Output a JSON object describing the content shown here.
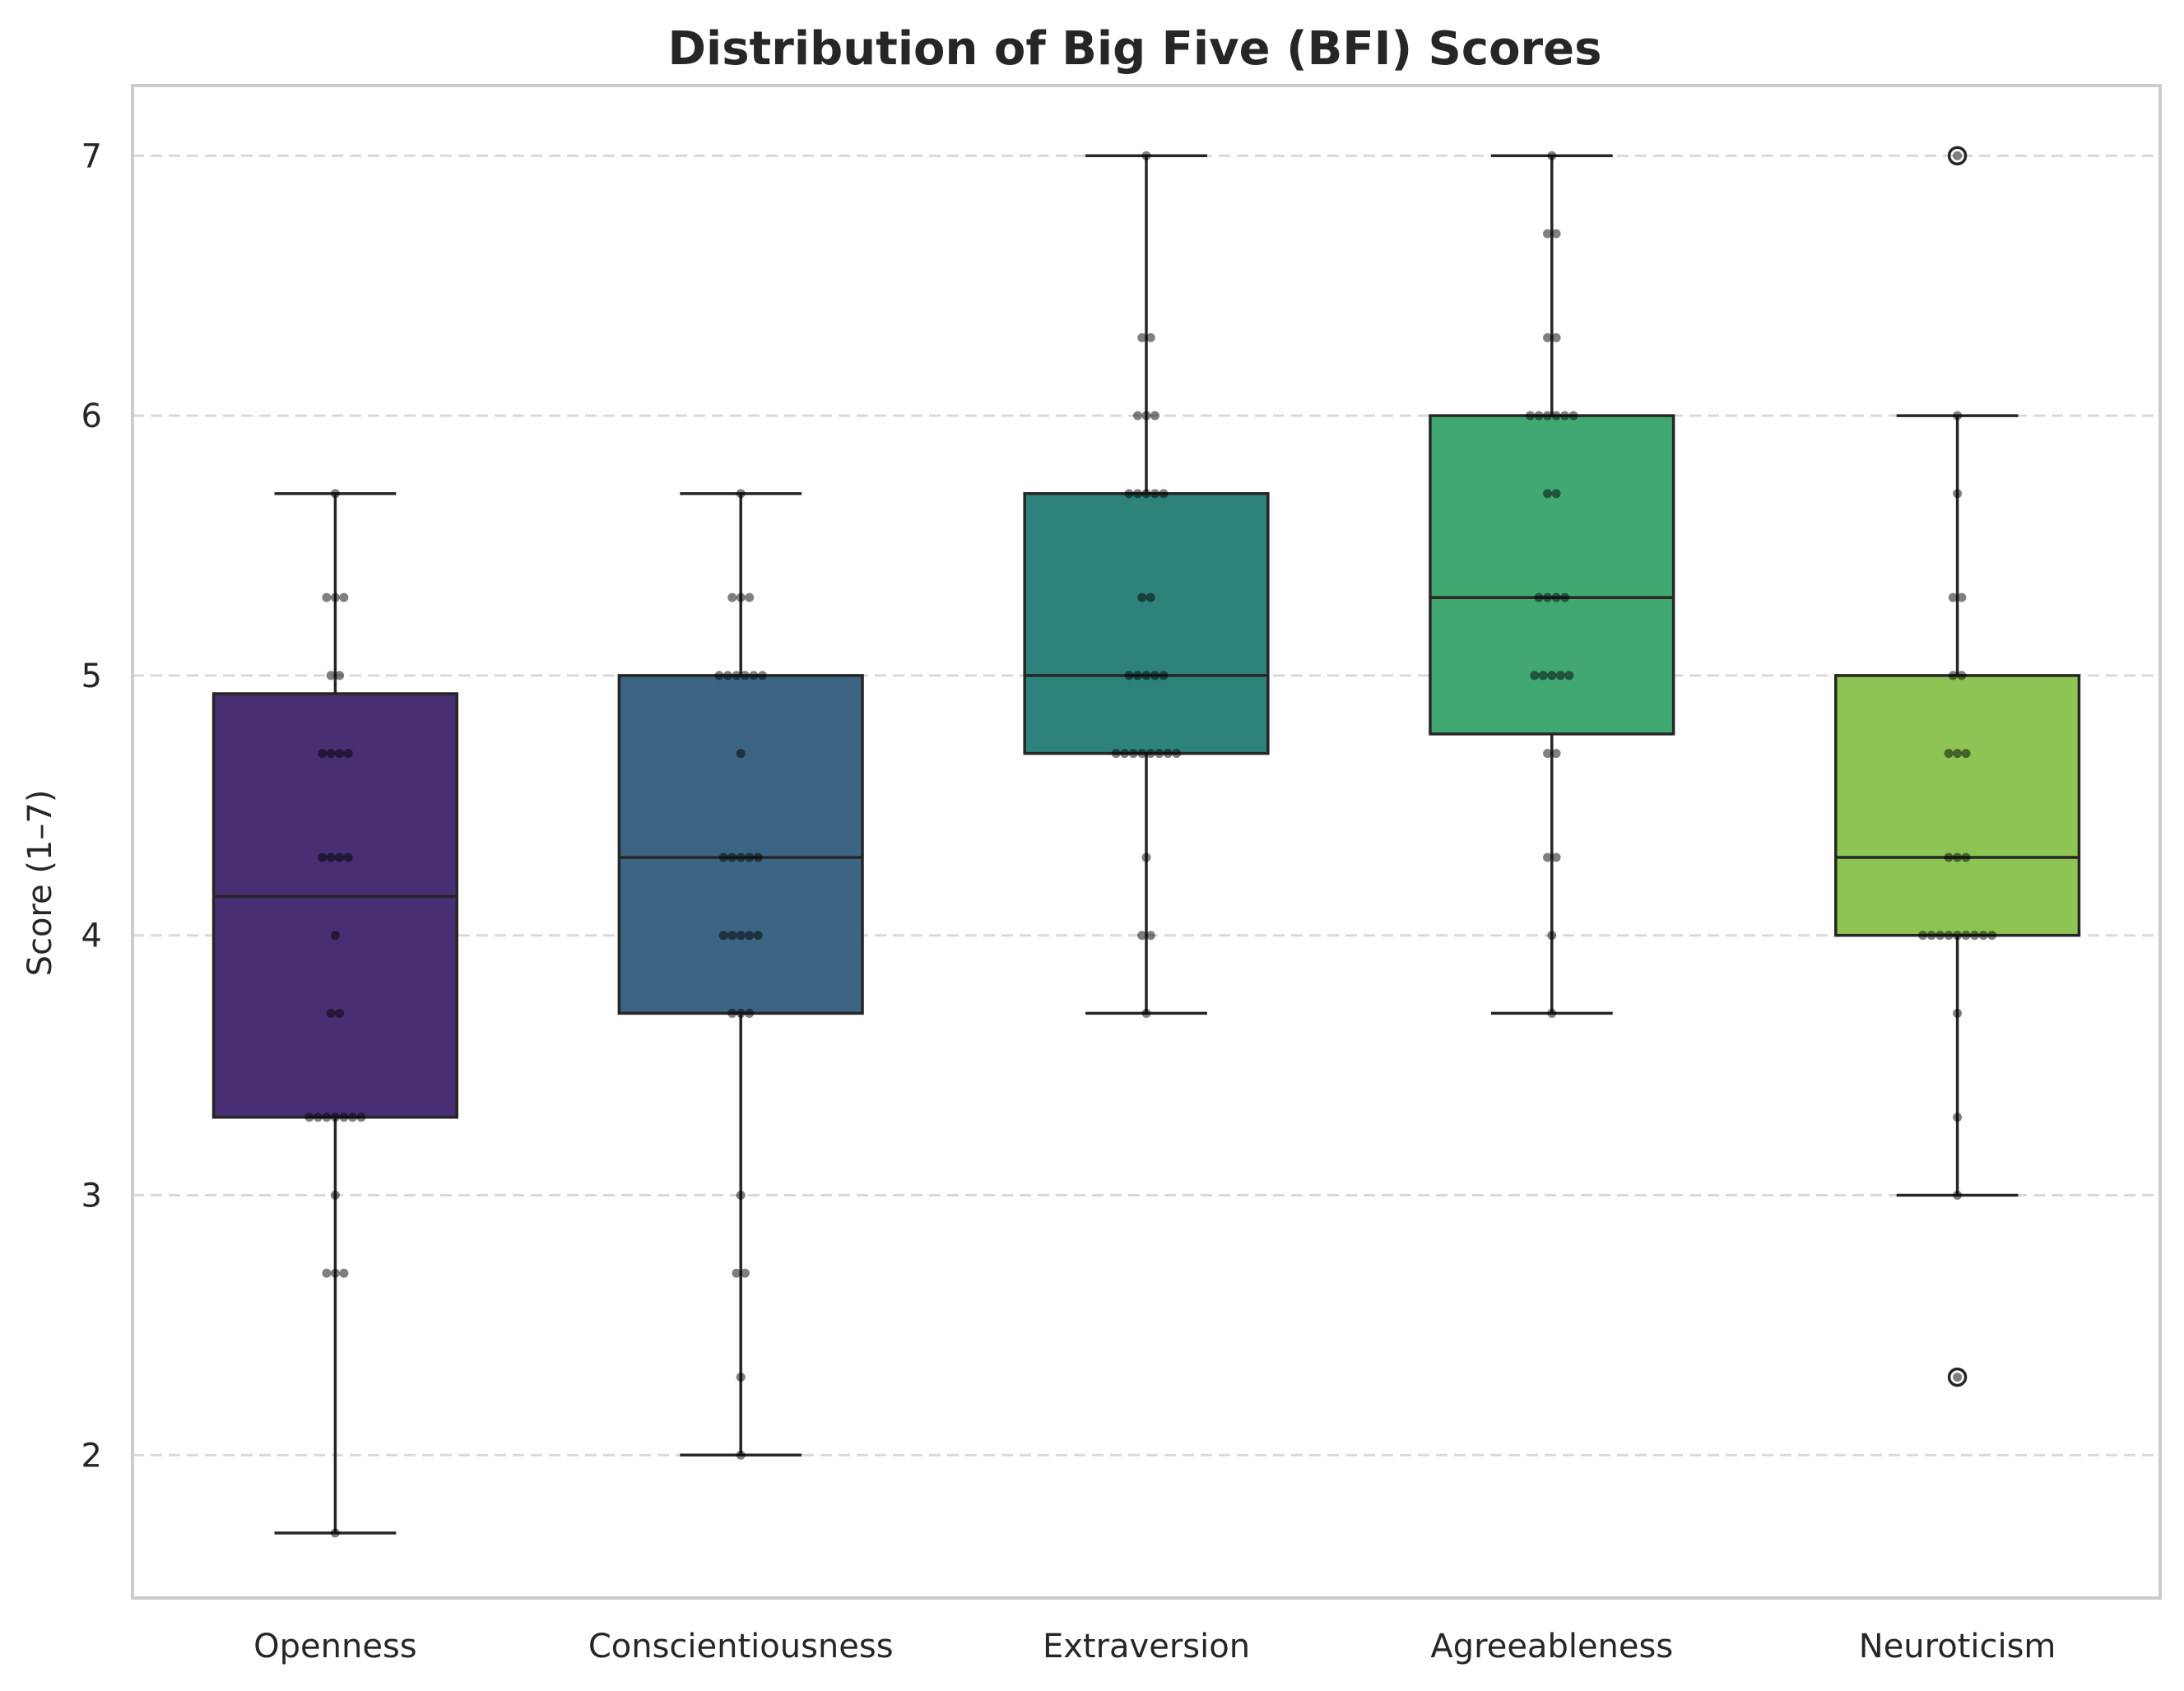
{
  "chart_data": {
    "type": "box",
    "title": "Distribution of Big Five (BFI) Scores",
    "xlabel": "",
    "ylabel": "Score (1–7)",
    "ylim": [
      1.45,
      7.27
    ],
    "yticks": [
      2,
      3,
      4,
      5,
      6,
      7
    ],
    "grid": "y-dashed",
    "categories": [
      "Openness",
      "Conscientiousness",
      "Extraversion",
      "Agreeableness",
      "Neuroticism"
    ],
    "colors": [
      "#482f74",
      "#3b6583",
      "#2e827c",
      "#42a872",
      "#8dc454"
    ],
    "boxes": [
      {
        "name": "Openness",
        "whisker_low": 1.7,
        "q1": 3.3,
        "median": 4.15,
        "q3": 4.93,
        "whisker_high": 5.7,
        "outliers": []
      },
      {
        "name": "Conscientiousness",
        "whisker_low": 2.0,
        "q1": 3.7,
        "median": 4.3,
        "q3": 5.0,
        "whisker_high": 5.7,
        "outliers": []
      },
      {
        "name": "Extraversion",
        "whisker_low": 3.7,
        "q1": 4.7,
        "median": 5.0,
        "q3": 5.7,
        "whisker_high": 7.0,
        "outliers": []
      },
      {
        "name": "Agreeableness",
        "whisker_low": 3.7,
        "q1": 4.775,
        "median": 5.3,
        "q3": 6.0,
        "whisker_high": 7.0,
        "outliers": []
      },
      {
        "name": "Neuroticism",
        "whisker_low": 3.0,
        "q1": 4.0,
        "median": 4.3,
        "q3": 5.0,
        "whisker_high": 6.0,
        "outliers": [
          2.3,
          7.0
        ]
      }
    ],
    "points": [
      [
        [
          5.7,
          1
        ],
        [
          5.3,
          3
        ],
        [
          5.0,
          2
        ],
        [
          4.7,
          4
        ],
        [
          4.3,
          4
        ],
        [
          4.0,
          1
        ],
        [
          3.7,
          2
        ],
        [
          3.3,
          7
        ],
        [
          3.0,
          1
        ],
        [
          2.7,
          3
        ],
        [
          1.7,
          1
        ]
      ],
      [
        [
          5.7,
          1
        ],
        [
          5.3,
          3
        ],
        [
          5.0,
          6
        ],
        [
          4.7,
          1
        ],
        [
          4.3,
          5
        ],
        [
          4.0,
          5
        ],
        [
          3.7,
          3
        ],
        [
          3.0,
          1
        ],
        [
          2.7,
          2
        ],
        [
          2.3,
          1
        ],
        [
          2.0,
          1
        ]
      ],
      [
        [
          7.0,
          1
        ],
        [
          6.3,
          2
        ],
        [
          6.0,
          3
        ],
        [
          5.7,
          5
        ],
        [
          5.3,
          2
        ],
        [
          5.0,
          5
        ],
        [
          4.7,
          8
        ],
        [
          4.3,
          1
        ],
        [
          4.0,
          2
        ],
        [
          3.7,
          1
        ]
      ],
      [
        [
          7.0,
          1
        ],
        [
          6.7,
          2
        ],
        [
          6.3,
          2
        ],
        [
          6.0,
          6
        ],
        [
          5.7,
          2
        ],
        [
          5.3,
          4
        ],
        [
          5.0,
          5
        ],
        [
          4.7,
          2
        ],
        [
          4.3,
          2
        ],
        [
          4.0,
          1
        ],
        [
          3.7,
          1
        ]
      ],
      [
        [
          7.0,
          1
        ],
        [
          6.0,
          1
        ],
        [
          5.7,
          1
        ],
        [
          5.3,
          2
        ],
        [
          5.0,
          2
        ],
        [
          4.7,
          3
        ],
        [
          4.3,
          3
        ],
        [
          4.0,
          9
        ],
        [
          3.7,
          1
        ],
        [
          3.3,
          1
        ],
        [
          3.0,
          1
        ],
        [
          2.3,
          1
        ]
      ]
    ]
  }
}
